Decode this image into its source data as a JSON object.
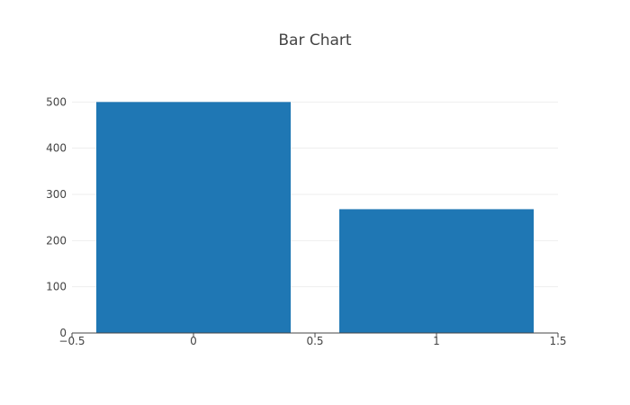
{
  "chart_data": {
    "type": "bar",
    "title": "Bar Chart",
    "xlabel": "",
    "ylabel": "",
    "x": [
      0,
      1
    ],
    "values": [
      500,
      268
    ],
    "bar_width": 0.8,
    "xlim": [
      -0.5,
      1.5
    ],
    "ylim": [
      0,
      526
    ],
    "x_ticks": [
      -0.5,
      0,
      0.5,
      1,
      1.5
    ],
    "x_tick_labels": [
      "−0.5",
      "0",
      "0.5",
      "1",
      "1.5"
    ],
    "y_ticks": [
      0,
      100,
      200,
      300,
      400,
      500
    ],
    "y_tick_labels": [
      "0",
      "100",
      "200",
      "300",
      "400",
      "500"
    ],
    "grid": true,
    "bar_color": "#1f77b4",
    "grid_color": "#eeeeee",
    "axis_color": "#444444",
    "text_color": "#444444"
  }
}
